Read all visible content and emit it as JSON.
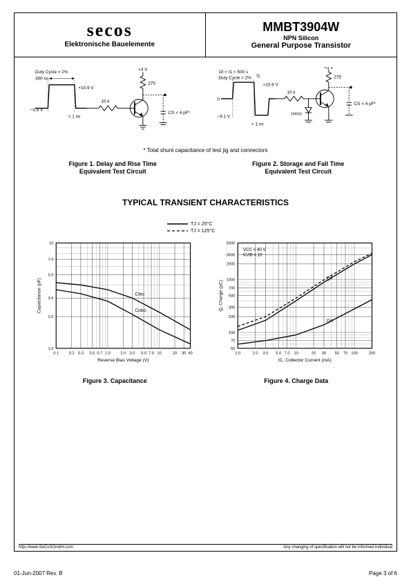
{
  "header": {
    "logo_text": "secos",
    "logo_subtitle": "Elektronische Bauelemente",
    "part_number": "MMBT3904W",
    "subtitle1": "NPN Silicon",
    "subtitle2": "General Purpose Transistor"
  },
  "circuits": {
    "shunt_note": "* Total shunt capacitance of test jig and connectors",
    "fig1": {
      "caption_line1": "Figure 1. Delay and Rise Time",
      "caption_line2": "Equivalent Test Circuit",
      "labels": {
        "duty_cycle": "Duty Cycle = 2%",
        "pulse_width": "300 ns",
        "v_high": "+10.9 V",
        "v_low": "−0.5 V",
        "edge": "< 1 ns",
        "r1": "10 k",
        "supply": "+3 V",
        "r2": "275",
        "cs": "CS < 4 pF*"
      }
    },
    "fig2": {
      "caption_line1": "Figure 2. Storage and Fall Time",
      "caption_line2": "Equivalent Test Circuit",
      "labels": {
        "cond": "10 < t1 < 500  s",
        "duty_cycle": "Duty Cycle = 2%",
        "t1": "t1",
        "v_high": "+10.9 V",
        "v_zero": "0",
        "v_low": "−9.1 V",
        "edge": "< 1 ns",
        "r1": "10 k",
        "diode": "1N916",
        "supply": "+3 V",
        "r2": "275",
        "cs": "CS < 4 pF*"
      }
    }
  },
  "section_title": "TYPICAL TRANSIENT CHARACTERISTICS",
  "chart_legend": {
    "line1": "TJ = 25°C",
    "line2": "TJ = 125°C"
  },
  "fig3": {
    "caption": "Figure 3. Capacitance",
    "type": "line-loglog",
    "xlabel": "Reverse Bias Voltage (V)",
    "ylabel": "Capacitance (pF)",
    "xticks": [
      "0.1",
      "0.2",
      "0.3",
      "0.5",
      "0.7",
      "1.0",
      "2.0",
      "3.0",
      "5.0",
      "7.0",
      "10",
      "20",
      "30",
      "40"
    ],
    "yticks": [
      "1.0",
      "2.0",
      "3.0",
      "5.0",
      "7.0",
      "10"
    ],
    "xlim": [
      0.1,
      40
    ],
    "ylim": [
      1.0,
      10
    ],
    "series": {
      "Cibo": {
        "label": "Cibo",
        "points": [
          [
            0.1,
            4.2
          ],
          [
            0.3,
            4.0
          ],
          [
            1.0,
            3.6
          ],
          [
            3.0,
            3.0
          ],
          [
            10,
            2.2
          ],
          [
            40,
            1.5
          ]
        ]
      },
      "Cobo": {
        "label": "Cobo",
        "points": [
          [
            0.1,
            3.6
          ],
          [
            0.3,
            3.3
          ],
          [
            1.0,
            2.8
          ],
          [
            3.0,
            2.1
          ],
          [
            10,
            1.5
          ],
          [
            40,
            1.1
          ]
        ]
      }
    },
    "line_color": "#000000",
    "grid_color": "#000000",
    "background_color": "#ffffff"
  },
  "fig4": {
    "caption": "Figure 4. Charge Data",
    "type": "line-loglog",
    "xlabel": "IC, Collector Current (mA)",
    "ylabel": "Q, Charge (pC)",
    "xticks": [
      "1.0",
      "2.0",
      "3.0",
      "5.0",
      "7.0",
      "10",
      "20",
      "30",
      "50",
      "70",
      "100",
      "200"
    ],
    "yticks": [
      "50",
      "70",
      "100",
      "200",
      "300",
      "500",
      "700",
      "1000",
      "2000",
      "3000",
      "5000"
    ],
    "xlim": [
      1.0,
      200
    ],
    "ylim": [
      50,
      5000
    ],
    "annotations": {
      "vcc": "VCC = 40 V",
      "ratio": "IC/IB = 10"
    },
    "series": {
      "QT_25": {
        "label": "QT",
        "dash": false,
        "points": [
          [
            1,
            110
          ],
          [
            3,
            170
          ],
          [
            10,
            400
          ],
          [
            30,
            900
          ],
          [
            100,
            2000
          ],
          [
            200,
            3000
          ]
        ]
      },
      "QT_125": {
        "dash": true,
        "points": [
          [
            1,
            130
          ],
          [
            3,
            200
          ],
          [
            10,
            450
          ],
          [
            30,
            1000
          ],
          [
            100,
            2200
          ],
          [
            200,
            3200
          ]
        ]
      },
      "QA": {
        "label": "QA",
        "dash": false,
        "points": [
          [
            1,
            60
          ],
          [
            3,
            70
          ],
          [
            10,
            90
          ],
          [
            30,
            140
          ],
          [
            100,
            280
          ],
          [
            200,
            420
          ]
        ]
      }
    },
    "line_color": "#000000",
    "grid_color": "#000000",
    "background_color": "#ffffff"
  },
  "footer": {
    "url": "http://www.SeCoSGmbH.com",
    "disclaimer": "Any changing of specification will not be informed individual",
    "date_rev": "01-Jun-2007 Rev. B",
    "page": "Page 3 of 6"
  }
}
